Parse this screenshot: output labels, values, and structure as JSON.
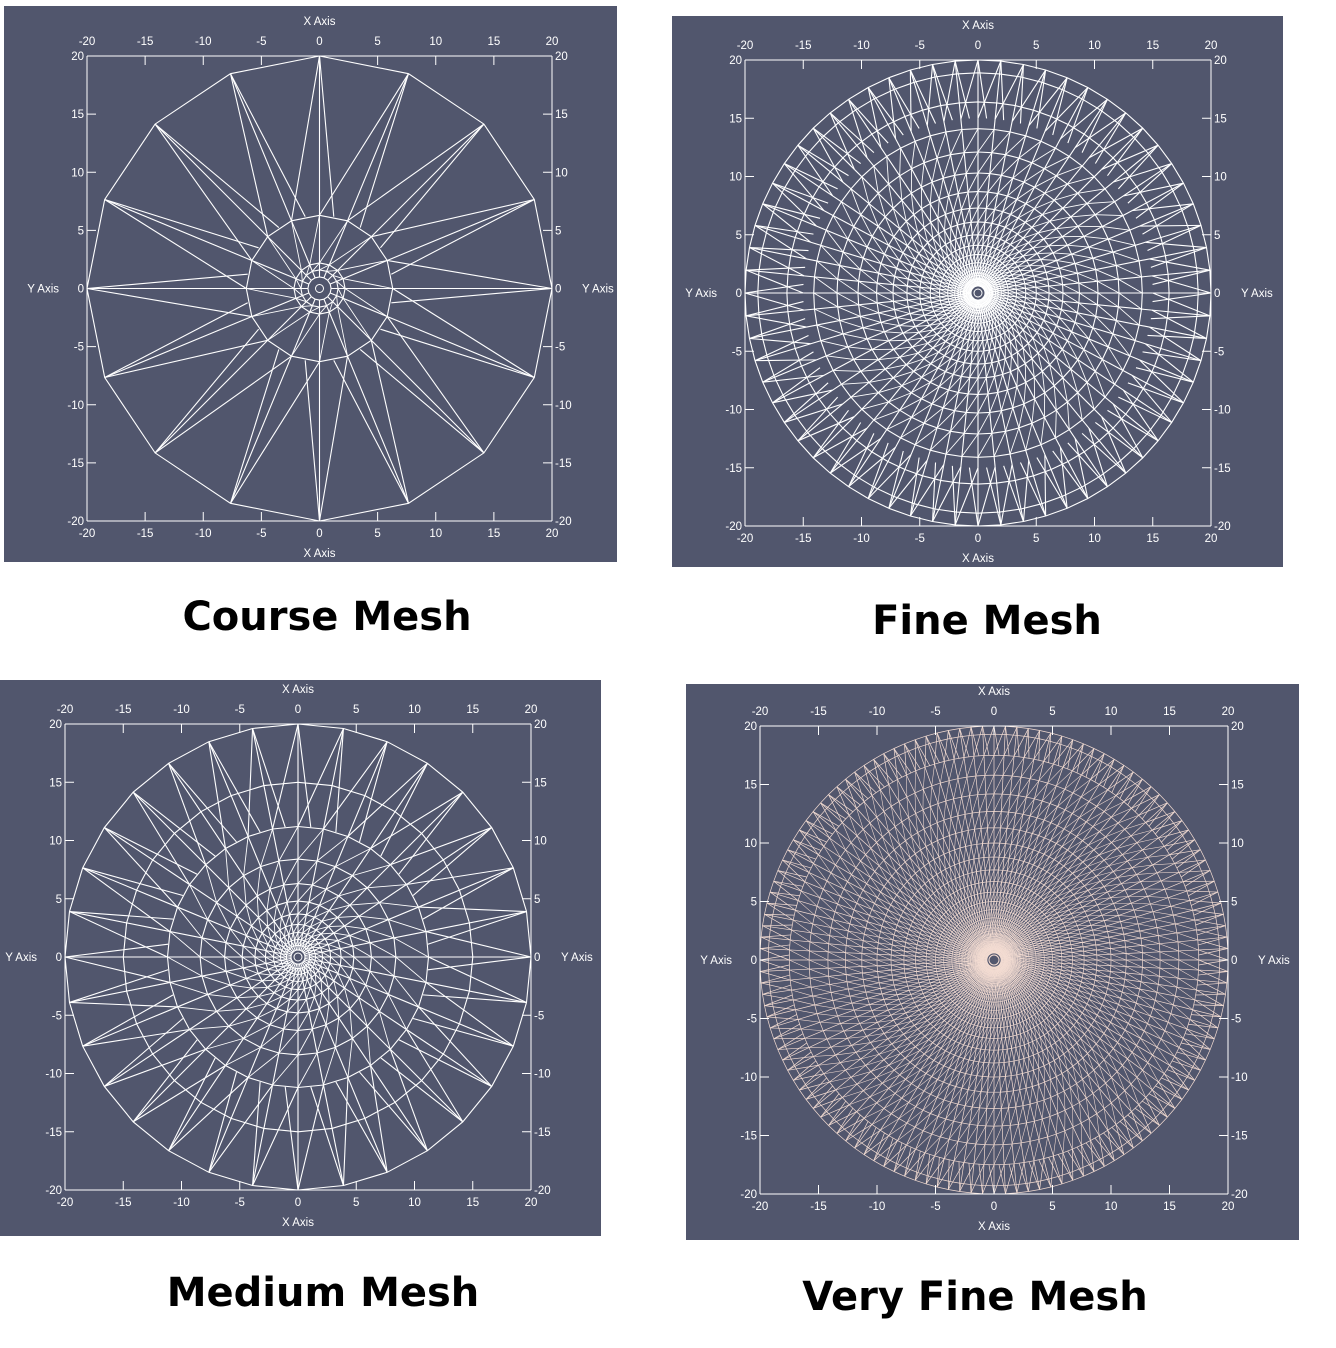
{
  "panels": [
    {
      "id": "course",
      "caption": "Course Mesh",
      "x_axis_label": "X Axis",
      "y_axis_label": "Y Axis",
      "x_ticks": [
        "-20",
        "-15",
        "-10",
        "-5",
        "0",
        "5",
        "10",
        "15",
        "20"
      ],
      "y_ticks": [
        "20",
        "15",
        "10",
        "5",
        "0",
        "-5",
        "-10",
        "-15",
        "-20"
      ],
      "mesh": {
        "spokes": 16,
        "rings": [
          1.0,
          1.6,
          2.2,
          6.3,
          20
        ],
        "star_inner_radius": 6.3,
        "dense": false
      },
      "colors": {
        "background": "#51566d",
        "line": "#ffffff"
      }
    },
    {
      "id": "fine",
      "caption": "Fine Mesh",
      "x_axis_label": "X Axis",
      "y_axis_label": "Y Axis",
      "x_ticks": [
        "-20",
        "-15",
        "-10",
        "-5",
        "0",
        "5",
        "10",
        "15",
        "20"
      ],
      "y_ticks": [
        "20",
        "15",
        "10",
        "5",
        "0",
        "-5",
        "-10",
        "-15",
        "-20"
      ],
      "mesh": {
        "spokes": 64,
        "rings": [
          0.6,
          1.0,
          1.5,
          2.0,
          2.6,
          3.3,
          4.1,
          5.0,
          6.1,
          7.3,
          8.7,
          10.3,
          12.1,
          14.1,
          16.4,
          18.9,
          20
        ],
        "star_inner_radius": 15,
        "dense": false
      },
      "colors": {
        "background": "#51566d",
        "line": "#ffffff"
      }
    },
    {
      "id": "medium",
      "caption": "Medium Mesh",
      "x_axis_label": "X Axis",
      "y_axis_label": "Y Axis",
      "x_ticks": [
        "-20",
        "-15",
        "-10",
        "-5",
        "0",
        "5",
        "10",
        "15",
        "20"
      ],
      "y_ticks": [
        "20",
        "15",
        "10",
        "5",
        "0",
        "-5",
        "-10",
        "-15",
        "-20"
      ],
      "mesh": {
        "spokes": 32,
        "rings": [
          0.6,
          1.0,
          1.5,
          2.1,
          2.8,
          3.7,
          4.8,
          6.3,
          8.4,
          11.2,
          15.0,
          20
        ],
        "star_inner_radius": 11.2,
        "dense": false
      },
      "colors": {
        "background": "#51566d",
        "line": "#ffffff"
      }
    },
    {
      "id": "veryfine",
      "caption": "Very Fine Mesh",
      "x_axis_label": "X Axis",
      "y_axis_label": "Y Axis",
      "x_ticks": [
        "-20",
        "-15",
        "-10",
        "-5",
        "0",
        "5",
        "10",
        "15",
        "20"
      ],
      "y_ticks": [
        "20",
        "15",
        "10",
        "5",
        "0",
        "-5",
        "-10",
        "-15",
        "-20"
      ],
      "mesh": {
        "spokes": 128,
        "rings": [
          0.6,
          0.9,
          1.2,
          1.6,
          2.0,
          2.5,
          3.0,
          3.6,
          4.3,
          5.0,
          5.8,
          6.7,
          7.7,
          8.8,
          10.0,
          11.3,
          12.7,
          14.2,
          15.8,
          17.5,
          19.3,
          20
        ],
        "star_inner_radius": 17.5,
        "dense": true
      },
      "colors": {
        "background": "#51566d",
        "line": "#f3dcd2"
      }
    }
  ]
}
